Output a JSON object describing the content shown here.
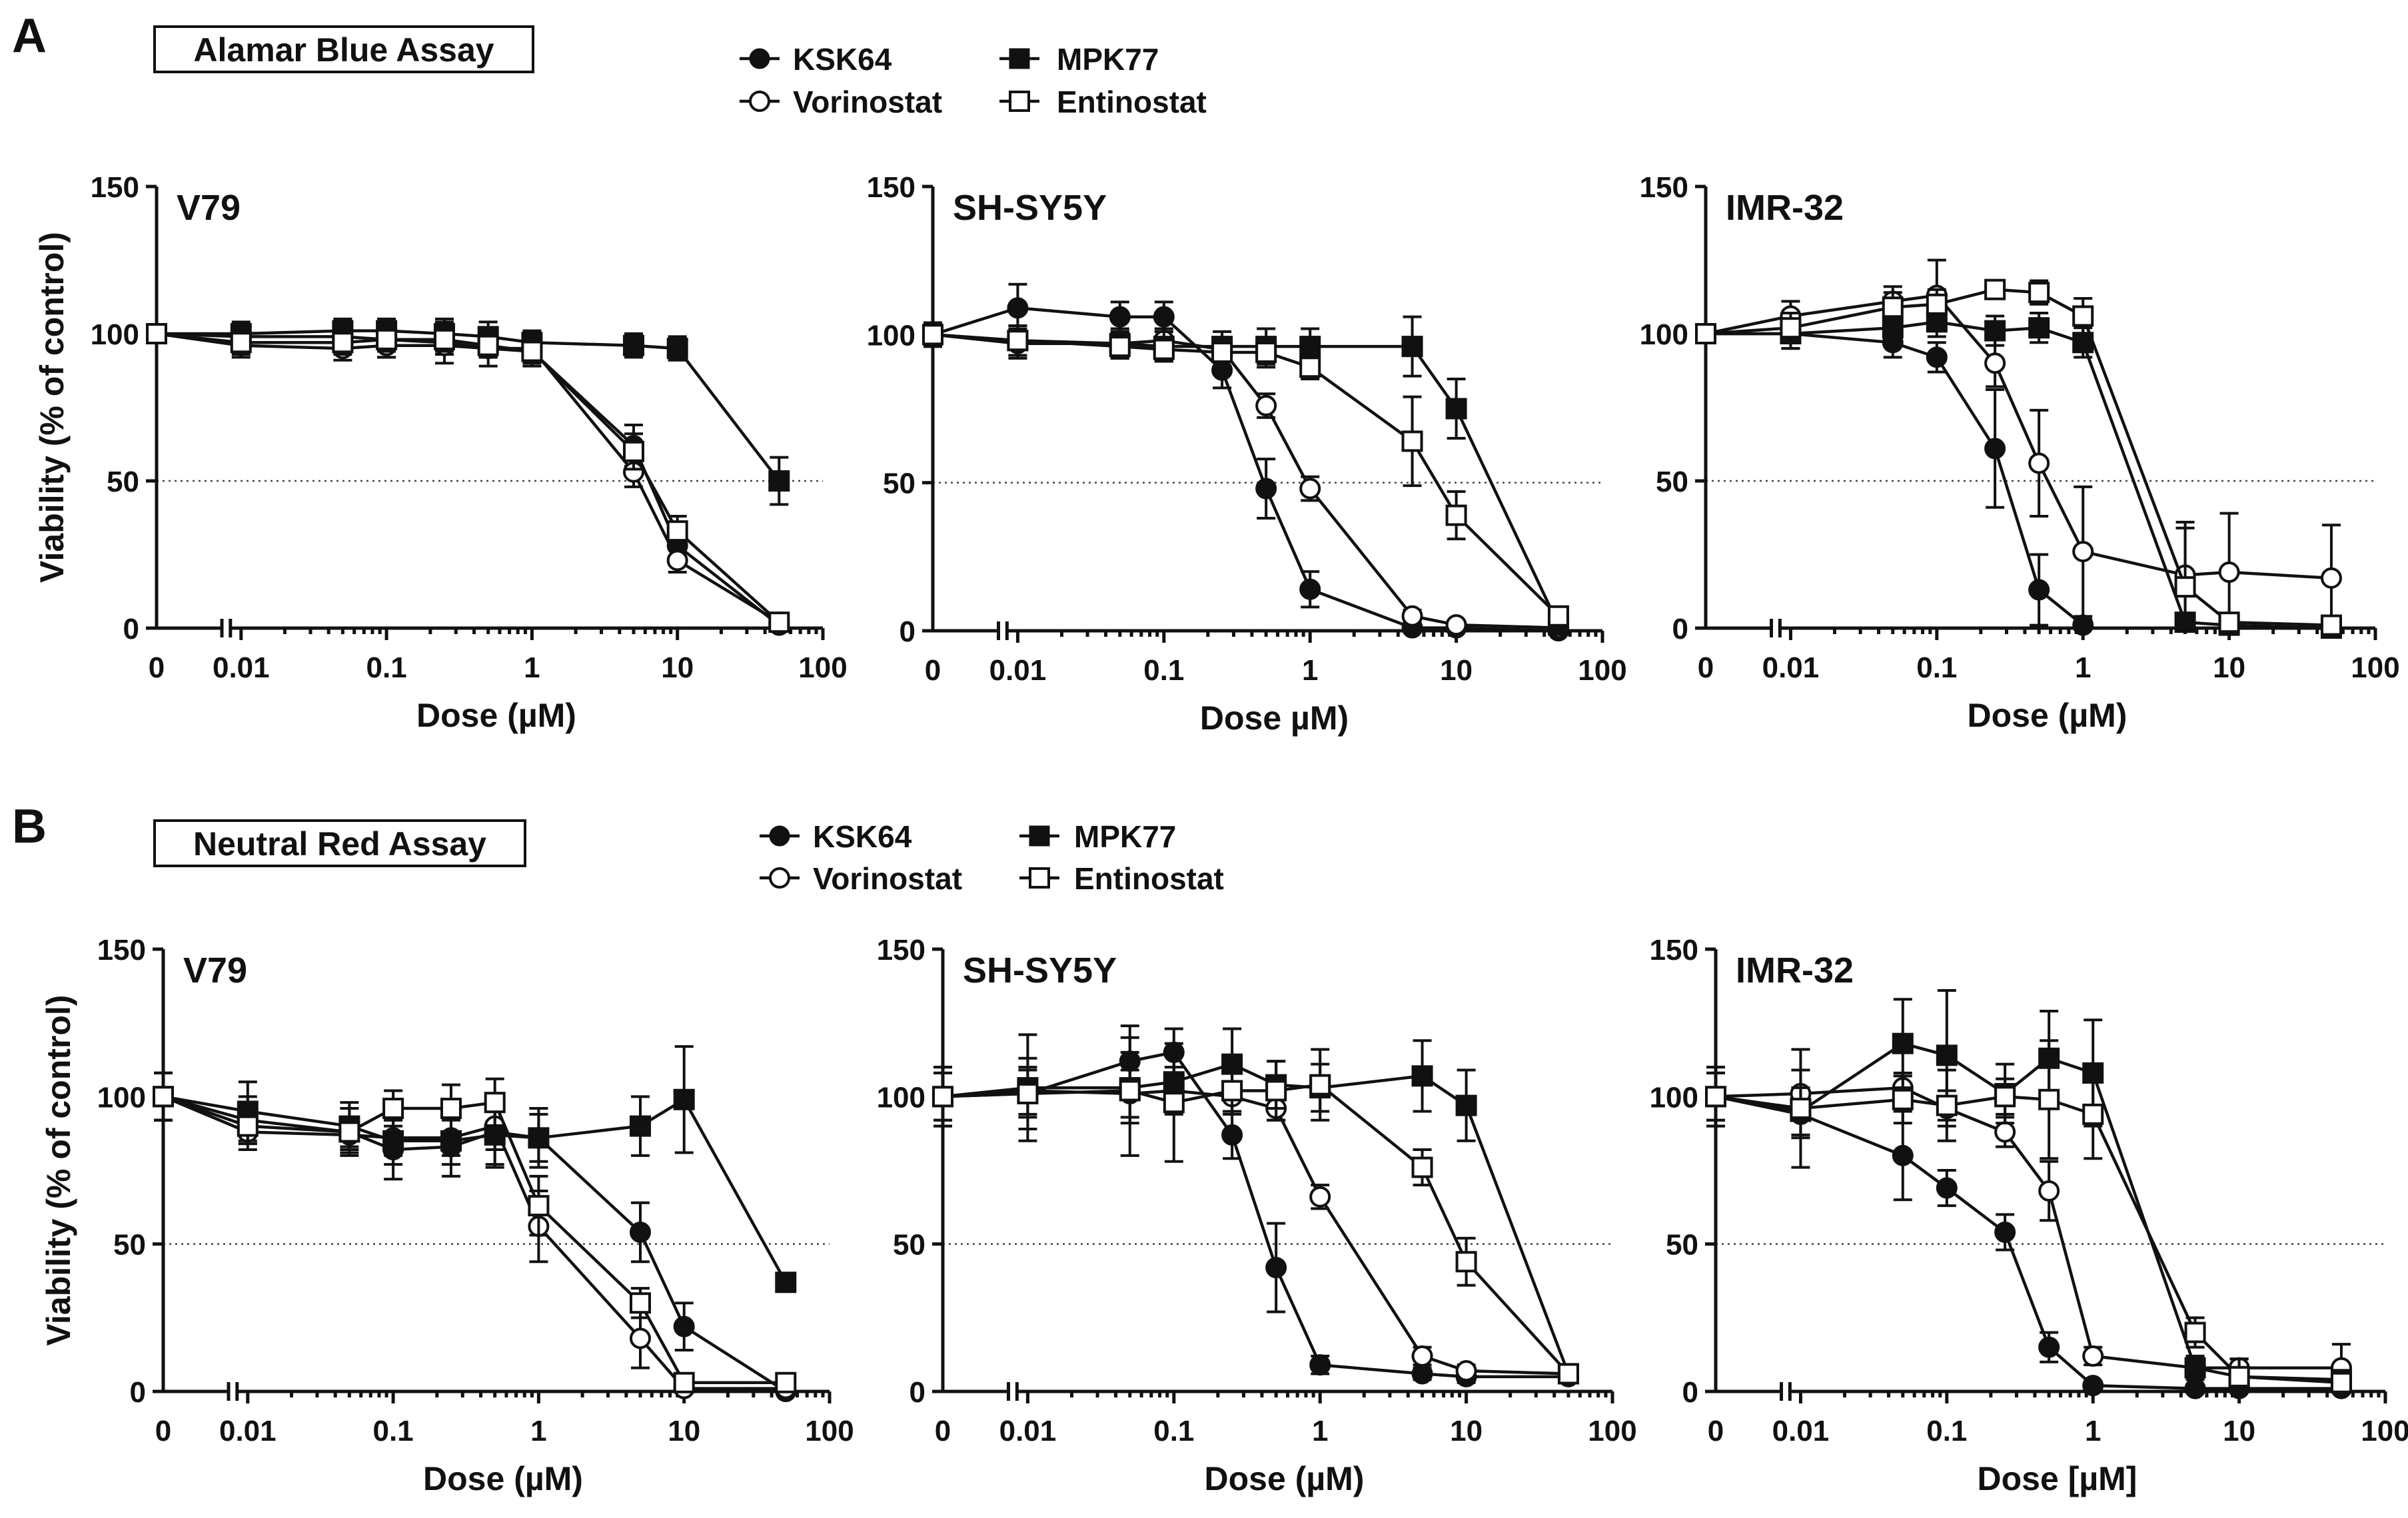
{
  "panel_labels": [
    "A",
    "B"
  ],
  "assay_titles": [
    "Alamar Blue Assay",
    "Neutral Red Assay"
  ],
  "legend": {
    "items": [
      {
        "name": "KSK64",
        "marker": "filled-circle-icon"
      },
      {
        "name": "Vorinostat",
        "marker": "open-circle-icon"
      },
      {
        "name": "MPK77",
        "marker": "filled-square-icon"
      },
      {
        "name": "Entinostat",
        "marker": "open-square-icon"
      }
    ]
  },
  "chart_data": [
    {
      "type": "line",
      "panel": "A",
      "assay": "Alamar Blue Assay",
      "title": "V79",
      "xlabel": "Dose (µM)",
      "ylabel": "Viability (% of control)",
      "xscale": "log with 0 break",
      "xticks": [
        "0",
        "0.01",
        "0.1",
        "1",
        "10",
        "100"
      ],
      "yticks": [
        "0",
        "50",
        "100",
        "150"
      ],
      "ylim": [
        0,
        150
      ],
      "reference_line": 50,
      "series": [
        {
          "name": "KSK64",
          "x": [
            0,
            0.01,
            0.05,
            0.1,
            0.25,
            0.5,
            1,
            5,
            10,
            50
          ],
          "y": [
            100,
            99,
            99,
            98,
            97,
            95,
            94,
            62,
            28,
            1
          ],
          "err": [
            3,
            4,
            5,
            6,
            7,
            6,
            5,
            7,
            4,
            2
          ]
        },
        {
          "name": "Vorinostat",
          "x": [
            0,
            0.01,
            0.05,
            0.1,
            0.25,
            0.5,
            1,
            5,
            10,
            50
          ],
          "y": [
            100,
            96,
            95,
            96,
            96,
            95,
            95,
            53,
            23,
            2
          ],
          "err": [
            3,
            4,
            4,
            4,
            3,
            3,
            3,
            5,
            4,
            2
          ]
        },
        {
          "name": "MPK77",
          "x": [
            0,
            0.01,
            0.05,
            0.1,
            0.25,
            0.5,
            1,
            5,
            10,
            50
          ],
          "y": [
            100,
            100,
            101,
            101,
            100,
            99,
            97,
            96,
            95,
            50
          ],
          "err": [
            3,
            4,
            4,
            4,
            5,
            5,
            4,
            4,
            4,
            8
          ]
        },
        {
          "name": "Entinostat",
          "x": [
            0,
            0.01,
            0.05,
            0.1,
            0.25,
            0.5,
            1,
            5,
            10,
            50
          ],
          "y": [
            100,
            97,
            97,
            98,
            98,
            96,
            94,
            60,
            33,
            2
          ],
          "err": [
            3,
            4,
            4,
            4,
            4,
            4,
            4,
            6,
            5,
            2
          ]
        }
      ]
    },
    {
      "type": "line",
      "panel": "A",
      "assay": "Alamar Blue Assay",
      "title": "SH-SY5Y",
      "xlabel": "Dose µM)",
      "ylabel": "",
      "xscale": "log with 0 break",
      "xticks": [
        "0",
        "0.01",
        "0.1",
        "1",
        "10",
        "100"
      ],
      "yticks": [
        "0",
        "50",
        "100",
        "150"
      ],
      "ylim": [
        0,
        150
      ],
      "reference_line": 50,
      "series": [
        {
          "name": "KSK64",
          "x": [
            0,
            0.01,
            0.05,
            0.1,
            0.25,
            0.5,
            1,
            5,
            10,
            50
          ],
          "y": [
            100,
            109,
            106,
            106,
            88,
            48,
            14,
            1,
            1,
            0
          ],
          "err": [
            4,
            8,
            5,
            5,
            6,
            10,
            6,
            1,
            1,
            1
          ]
        },
        {
          "name": "Vorinostat",
          "x": [
            0,
            0.01,
            0.05,
            0.1,
            0.25,
            0.5,
            1,
            5,
            10,
            50
          ],
          "y": [
            100,
            97,
            97,
            98,
            95,
            76,
            48,
            5,
            2,
            1
          ],
          "err": [
            4,
            5,
            4,
            4,
            4,
            4,
            4,
            2,
            1,
            1
          ]
        },
        {
          "name": "MPK77",
          "x": [
            0,
            0.01,
            0.05,
            0.1,
            0.25,
            0.5,
            1,
            5,
            10,
            50
          ],
          "y": [
            100,
            98,
            97,
            96,
            96,
            96,
            96,
            96,
            75,
            2
          ],
          "err": [
            4,
            5,
            5,
            5,
            5,
            6,
            6,
            10,
            10,
            2
          ]
        },
        {
          "name": "Entinostat",
          "x": [
            0,
            0.01,
            0.05,
            0.1,
            0.25,
            0.5,
            1,
            5,
            10,
            50
          ],
          "y": [
            100,
            98,
            96,
            95,
            94,
            94,
            89,
            64,
            39,
            5
          ],
          "err": [
            4,
            5,
            4,
            4,
            5,
            5,
            4,
            15,
            8,
            3
          ]
        }
      ]
    },
    {
      "type": "line",
      "panel": "A",
      "assay": "Alamar Blue Assay",
      "title": "IMR-32",
      "xlabel": "Dose (µM)",
      "ylabel": "",
      "xscale": "log with 0 break",
      "xticks": [
        "0",
        "0.01",
        "0.1",
        "1",
        "10",
        "100"
      ],
      "yticks": [
        "0",
        "50",
        "100",
        "150"
      ],
      "ylim": [
        0,
        150
      ],
      "reference_line": 50,
      "series": [
        {
          "name": "KSK64",
          "x": [
            0,
            0.01,
            0.05,
            0.1,
            0.25,
            0.5,
            1
          ],
          "y": [
            100,
            100,
            97,
            92,
            61,
            13,
            1
          ],
          "err": [
            3,
            5,
            5,
            5,
            20,
            12,
            2
          ]
        },
        {
          "name": "Vorinostat",
          "x": [
            0,
            0.01,
            0.05,
            0.1,
            0.25,
            0.5,
            1,
            5,
            10,
            50
          ],
          "y": [
            100,
            106,
            111,
            113,
            90,
            56,
            26,
            18,
            19,
            17
          ],
          "err": [
            3,
            5,
            5,
            12,
            8,
            18,
            22,
            18,
            20,
            18
          ]
        },
        {
          "name": "MPK77",
          "x": [
            0,
            0.01,
            0.05,
            0.1,
            0.25,
            0.5,
            1,
            5,
            10,
            50
          ],
          "y": [
            100,
            100,
            102,
            104,
            101,
            102,
            97,
            2,
            1,
            0
          ],
          "err": [
            3,
            5,
            5,
            5,
            5,
            5,
            5,
            2,
            1,
            1
          ]
        },
        {
          "name": "Entinostat",
          "x": [
            0,
            0.01,
            0.05,
            0.1,
            0.25,
            0.5,
            1,
            5,
            10,
            50
          ],
          "y": [
            100,
            102,
            109,
            110,
            115,
            114,
            106,
            14,
            2,
            1
          ],
          "err": [
            3,
            5,
            5,
            5,
            3,
            4,
            6,
            20,
            3,
            1
          ]
        }
      ]
    },
    {
      "type": "line",
      "panel": "B",
      "assay": "Neutral Red Assay",
      "title": "V79",
      "xlabel": "Dose (µM)",
      "ylabel": "Viability (% of control)",
      "xscale": "log with 0 break",
      "xticks": [
        "0",
        "0.01",
        "0.1",
        "1",
        "10",
        "100"
      ],
      "yticks": [
        "0",
        "50",
        "100",
        "150"
      ],
      "ylim": [
        0,
        150
      ],
      "reference_line": 50,
      "series": [
        {
          "name": "KSK64",
          "x": [
            0,
            0.01,
            0.05,
            0.1,
            0.25,
            0.5,
            1,
            5,
            10,
            50
          ],
          "y": [
            100,
            92,
            88,
            82,
            83,
            88,
            86,
            54,
            22,
            0
          ],
          "err": [
            8,
            8,
            8,
            10,
            10,
            12,
            10,
            10,
            8,
            2
          ]
        },
        {
          "name": "Vorinostat",
          "x": [
            0,
            0.01,
            0.05,
            0.1,
            0.25,
            0.5,
            1,
            5,
            10,
            50
          ],
          "y": [
            100,
            88,
            87,
            86,
            86,
            90,
            56,
            18,
            1,
            1
          ],
          "err": [
            8,
            6,
            6,
            6,
            6,
            8,
            12,
            10,
            2,
            1
          ]
        },
        {
          "name": "MPK77",
          "x": [
            0,
            0.01,
            0.05,
            0.1,
            0.25,
            0.5,
            1,
            5,
            10,
            50
          ],
          "y": [
            100,
            95,
            90,
            85,
            85,
            87,
            86,
            90,
            99,
            37
          ],
          "err": [
            8,
            10,
            8,
            8,
            8,
            10,
            8,
            10,
            18,
            3
          ]
        },
        {
          "name": "Entinostat",
          "x": [
            0,
            0.01,
            0.05,
            0.1,
            0.25,
            0.5,
            1,
            5,
            10,
            50
          ],
          "y": [
            100,
            90,
            88,
            96,
            96,
            98,
            63,
            30,
            3,
            3
          ],
          "err": [
            8,
            6,
            5,
            6,
            8,
            8,
            10,
            5,
            3,
            3
          ]
        }
      ]
    },
    {
      "type": "line",
      "panel": "B",
      "assay": "Neutral Red Assay",
      "title": "SH-SY5Y",
      "xlabel": "Dose (µM)",
      "ylabel": "",
      "xscale": "log with 0 break",
      "xticks": [
        "0",
        "0.01",
        "0.1",
        "1",
        "10",
        "100"
      ],
      "yticks": [
        "0",
        "50",
        "100",
        "150"
      ],
      "ylim": [
        0,
        150
      ],
      "reference_line": 50,
      "series": [
        {
          "name": "KSK64",
          "x": [
            0,
            0.01,
            0.05,
            0.1,
            0.25,
            0.5,
            1,
            5,
            10,
            50
          ],
          "y": [
            100,
            101,
            112,
            115,
            87,
            42,
            9,
            6,
            5,
            5
          ],
          "err": [
            10,
            8,
            8,
            8,
            8,
            15,
            3,
            2,
            2,
            2
          ]
        },
        {
          "name": "Vorinostat",
          "x": [
            0,
            0.01,
            0.05,
            0.1,
            0.25,
            0.5,
            1,
            5,
            10,
            50
          ],
          "y": [
            100,
            102,
            101,
            102,
            100,
            96,
            66,
            12,
            7,
            6
          ],
          "err": [
            8,
            8,
            8,
            8,
            5,
            4,
            4,
            3,
            2,
            2
          ]
        },
        {
          "name": "MPK77",
          "x": [
            0,
            0.01,
            0.05,
            0.1,
            0.25,
            0.5,
            1,
            5,
            10,
            50
          ],
          "y": [
            100,
            103,
            103,
            105,
            111,
            104,
            103,
            107,
            97,
            6
          ],
          "err": [
            10,
            18,
            12,
            10,
            12,
            8,
            8,
            12,
            12,
            2
          ]
        },
        {
          "name": "Entinostat",
          "x": [
            0,
            0.01,
            0.05,
            0.1,
            0.25,
            0.5,
            1,
            5,
            10,
            50
          ],
          "y": [
            100,
            101,
            102,
            98,
            102,
            102,
            104,
            76,
            44,
            6
          ],
          "err": [
            8,
            12,
            22,
            20,
            8,
            10,
            12,
            6,
            8,
            2
          ]
        }
      ]
    },
    {
      "type": "line",
      "panel": "B",
      "assay": "Neutral Red Assay",
      "title": "IMR-32",
      "xlabel": "Dose [µM]",
      "ylabel": "",
      "xscale": "log with 0 break",
      "xticks": [
        "0",
        "0.01",
        "0.1",
        "1",
        "10",
        "100"
      ],
      "yticks": [
        "0",
        "50",
        "100",
        "150"
      ],
      "ylim": [
        0,
        150
      ],
      "reference_line": 50,
      "series": [
        {
          "name": "KSK64",
          "x": [
            0,
            0.01,
            0.05,
            0.1,
            0.25,
            0.5,
            1,
            5,
            10,
            50
          ],
          "y": [
            100,
            94,
            80,
            69,
            54,
            15,
            2,
            1,
            1,
            1
          ],
          "err": [
            10,
            8,
            15,
            6,
            6,
            5,
            1,
            1,
            1,
            1
          ]
        },
        {
          "name": "Vorinostat",
          "x": [
            0,
            0.01,
            0.05,
            0.1,
            0.25,
            0.5,
            1,
            5,
            10,
            50
          ],
          "y": [
            100,
            101,
            103,
            96,
            88,
            68,
            12,
            8,
            8,
            8
          ],
          "err": [
            8,
            8,
            5,
            6,
            5,
            10,
            3,
            3,
            3,
            8
          ]
        },
        {
          "name": "MPK77",
          "x": [
            0,
            0.01,
            0.05,
            0.1,
            0.25,
            0.5,
            1,
            5,
            10,
            50
          ],
          "y": [
            100,
            95,
            118,
            114,
            101,
            113,
            108,
            8,
            5,
            4
          ],
          "err": [
            8,
            8,
            15,
            22,
            10,
            16,
            18,
            4,
            6,
            3
          ]
        },
        {
          "name": "Entinostat",
          "x": [
            0,
            0.01,
            0.05,
            0.1,
            0.25,
            0.5,
            1,
            5,
            10,
            50
          ],
          "y": [
            100,
            96,
            99,
            97,
            100,
            99,
            94,
            20,
            5,
            3
          ],
          "err": [
            10,
            20,
            8,
            12,
            6,
            20,
            15,
            5,
            6,
            2
          ]
        }
      ]
    }
  ]
}
